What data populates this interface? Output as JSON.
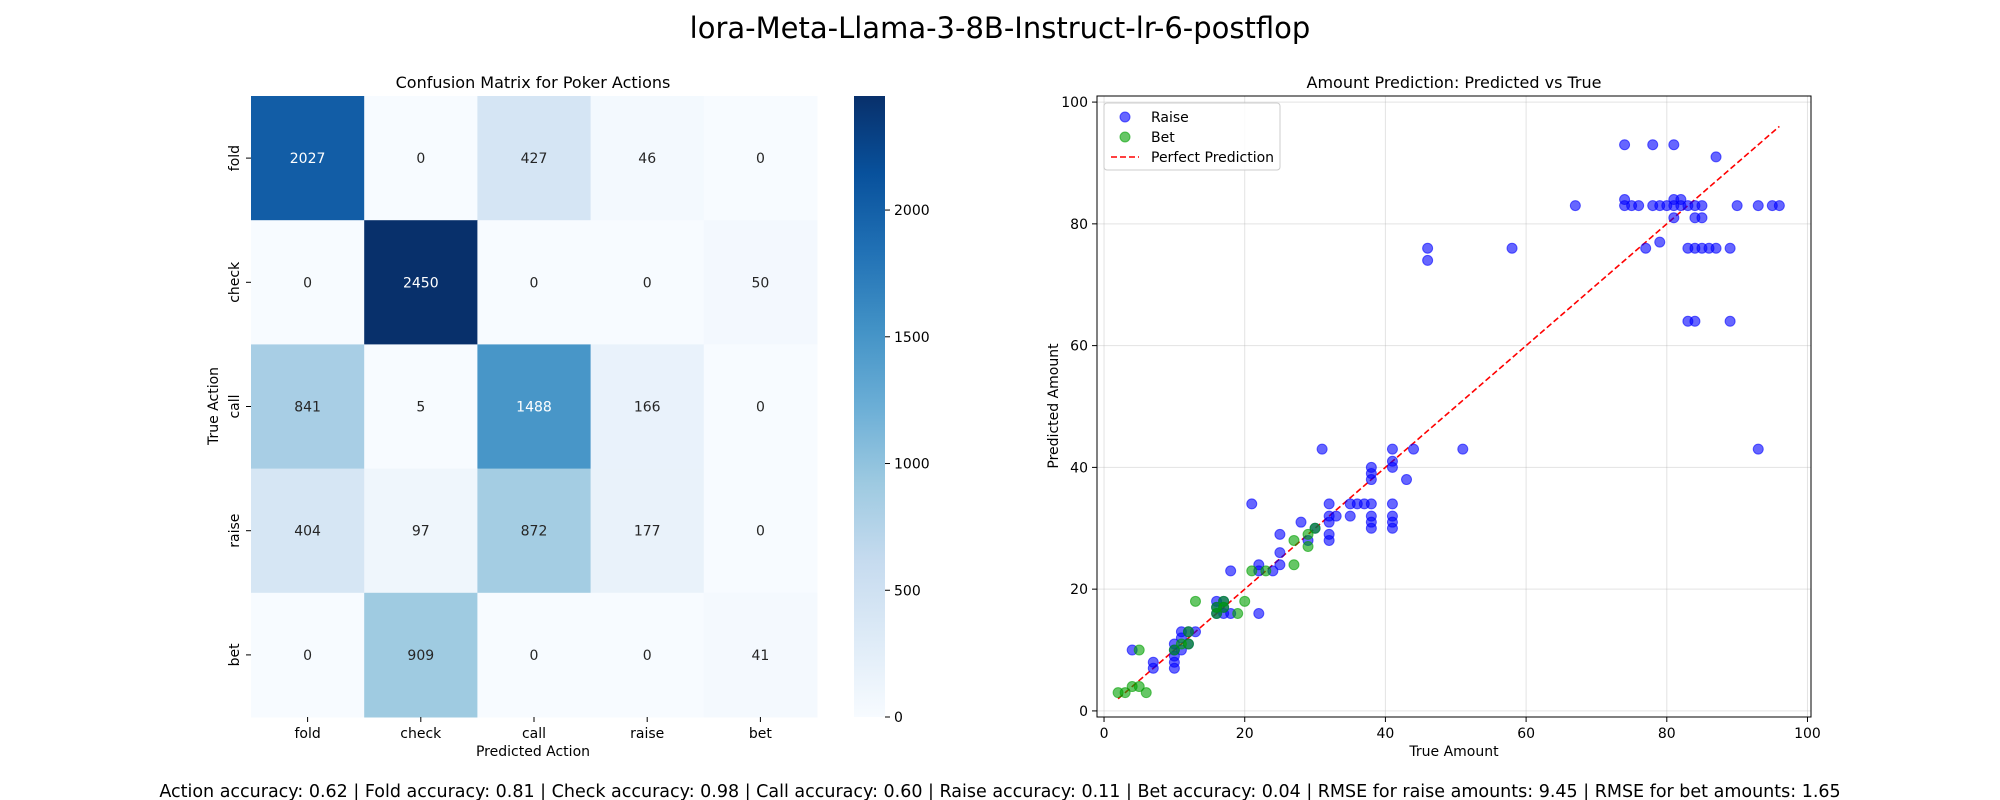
{
  "figure": {
    "suptitle": "lora-Meta-Llama-3-8B-Instruct-lr-6-postflop",
    "footer": "Action accuracy: 0.62 | Fold accuracy: 0.81 | Check accuracy: 0.98 | Call accuracy: 0.60 | Raise accuracy: 0.11 | Bet accuracy: 0.04 | RMSE for raise amounts: 9.45 | RMSE for bet amounts: 1.65"
  },
  "chart_data": [
    {
      "type": "heatmap",
      "title": "Confusion Matrix for Poker Actions",
      "xlabel": "Predicted Action",
      "ylabel": "True Action",
      "x_categories": [
        "fold",
        "check",
        "call",
        "raise",
        "bet"
      ],
      "y_categories": [
        "fold",
        "check",
        "call",
        "raise",
        "bet"
      ],
      "values": [
        [
          2027,
          0,
          427,
          46,
          0
        ],
        [
          0,
          2450,
          0,
          0,
          50
        ],
        [
          841,
          5,
          1488,
          166,
          0
        ],
        [
          404,
          97,
          872,
          177,
          0
        ],
        [
          0,
          909,
          0,
          0,
          41
        ]
      ],
      "colormap": "Blues",
      "colorbar": {
        "range": [
          0,
          2450
        ],
        "ticks": [
          0,
          500,
          1000,
          1500,
          2000
        ]
      }
    },
    {
      "type": "scatter",
      "title": "Amount Prediction: Predicted vs True",
      "xlabel": "True Amount",
      "ylabel": "Predicted Amount",
      "xlim": [
        -1,
        100.5
      ],
      "ylim": [
        -1,
        101
      ],
      "xticks": [
        0,
        20,
        40,
        60,
        80,
        100
      ],
      "yticks": [
        0,
        20,
        40,
        60,
        80,
        100
      ],
      "grid": true,
      "legend_position": "top-left",
      "series": [
        {
          "name": "Raise",
          "color": "#0000ff",
          "points": [
            [
              4,
              10
            ],
            [
              7,
              8
            ],
            [
              7,
              7
            ],
            [
              10,
              7
            ],
            [
              10,
              8
            ],
            [
              10,
              9
            ],
            [
              10,
              10
            ],
            [
              10,
              11
            ],
            [
              11,
              10
            ],
            [
              11,
              12
            ],
            [
              11,
              13
            ],
            [
              12,
              11
            ],
            [
              12,
              13
            ],
            [
              13,
              13
            ],
            [
              16,
              16
            ],
            [
              16,
              17
            ],
            [
              16,
              18
            ],
            [
              17,
              16
            ],
            [
              17,
              17
            ],
            [
              17,
              18
            ],
            [
              18,
              16
            ],
            [
              18,
              23
            ],
            [
              21,
              34
            ],
            [
              22,
              16
            ],
            [
              22,
              23
            ],
            [
              22,
              24
            ],
            [
              24,
              23
            ],
            [
              25,
              24
            ],
            [
              25,
              26
            ],
            [
              25,
              29
            ],
            [
              28,
              31
            ],
            [
              29,
              28
            ],
            [
              30,
              30
            ],
            [
              31,
              43
            ],
            [
              32,
              28
            ],
            [
              32,
              29
            ],
            [
              32,
              31
            ],
            [
              32,
              32
            ],
            [
              32,
              34
            ],
            [
              33,
              32
            ],
            [
              35,
              34
            ],
            [
              35,
              32
            ],
            [
              36,
              34
            ],
            [
              37,
              34
            ],
            [
              38,
              30
            ],
            [
              38,
              31
            ],
            [
              38,
              32
            ],
            [
              38,
              34
            ],
            [
              38,
              38
            ],
            [
              38,
              39
            ],
            [
              38,
              40
            ],
            [
              41,
              30
            ],
            [
              41,
              31
            ],
            [
              41,
              32
            ],
            [
              41,
              34
            ],
            [
              41,
              40
            ],
            [
              41,
              41
            ],
            [
              41,
              43
            ],
            [
              43,
              38
            ],
            [
              44,
              43
            ],
            [
              46,
              74
            ],
            [
              46,
              76
            ],
            [
              51,
              43
            ],
            [
              58,
              76
            ],
            [
              67,
              83
            ],
            [
              74,
              83
            ],
            [
              74,
              84
            ],
            [
              74,
              93
            ],
            [
              75,
              83
            ],
            [
              76,
              83
            ],
            [
              77,
              76
            ],
            [
              78,
              83
            ],
            [
              78,
              93
            ],
            [
              79,
              77
            ],
            [
              79,
              83
            ],
            [
              80,
              83
            ],
            [
              81,
              81
            ],
            [
              81,
              83
            ],
            [
              81,
              84
            ],
            [
              81,
              93
            ],
            [
              82,
              83
            ],
            [
              82,
              84
            ],
            [
              83,
              64
            ],
            [
              83,
              76
            ],
            [
              83,
              83
            ],
            [
              84,
              64
            ],
            [
              84,
              76
            ],
            [
              84,
              81
            ],
            [
              84,
              83
            ],
            [
              85,
              76
            ],
            [
              85,
              81
            ],
            [
              85,
              83
            ],
            [
              86,
              76
            ],
            [
              87,
              76
            ],
            [
              87,
              91
            ],
            [
              89,
              64
            ],
            [
              89,
              76
            ],
            [
              90,
              83
            ],
            [
              93,
              43
            ],
            [
              93,
              83
            ],
            [
              95,
              83
            ],
            [
              96,
              83
            ]
          ]
        },
        {
          "name": "Bet",
          "color": "#00a000",
          "points": [
            [
              2,
              3
            ],
            [
              3,
              3
            ],
            [
              4,
              4
            ],
            [
              5,
              4
            ],
            [
              5,
              10
            ],
            [
              6,
              3
            ],
            [
              10,
              10
            ],
            [
              11,
              11
            ],
            [
              12,
              11
            ],
            [
              12,
              13
            ],
            [
              13,
              18
            ],
            [
              16,
              16
            ],
            [
              16,
              17
            ],
            [
              17,
              17
            ],
            [
              17,
              18
            ],
            [
              19,
              16
            ],
            [
              20,
              18
            ],
            [
              21,
              23
            ],
            [
              23,
              23
            ],
            [
              27,
              24
            ],
            [
              27,
              28
            ],
            [
              29,
              27
            ],
            [
              29,
              29
            ],
            [
              30,
              30
            ]
          ]
        },
        {
          "name": "Perfect Prediction",
          "type": "line",
          "style": "dashed",
          "color": "#ff0000",
          "points": [
            [
              2,
              2
            ],
            [
              96,
              96
            ]
          ]
        }
      ]
    }
  ]
}
